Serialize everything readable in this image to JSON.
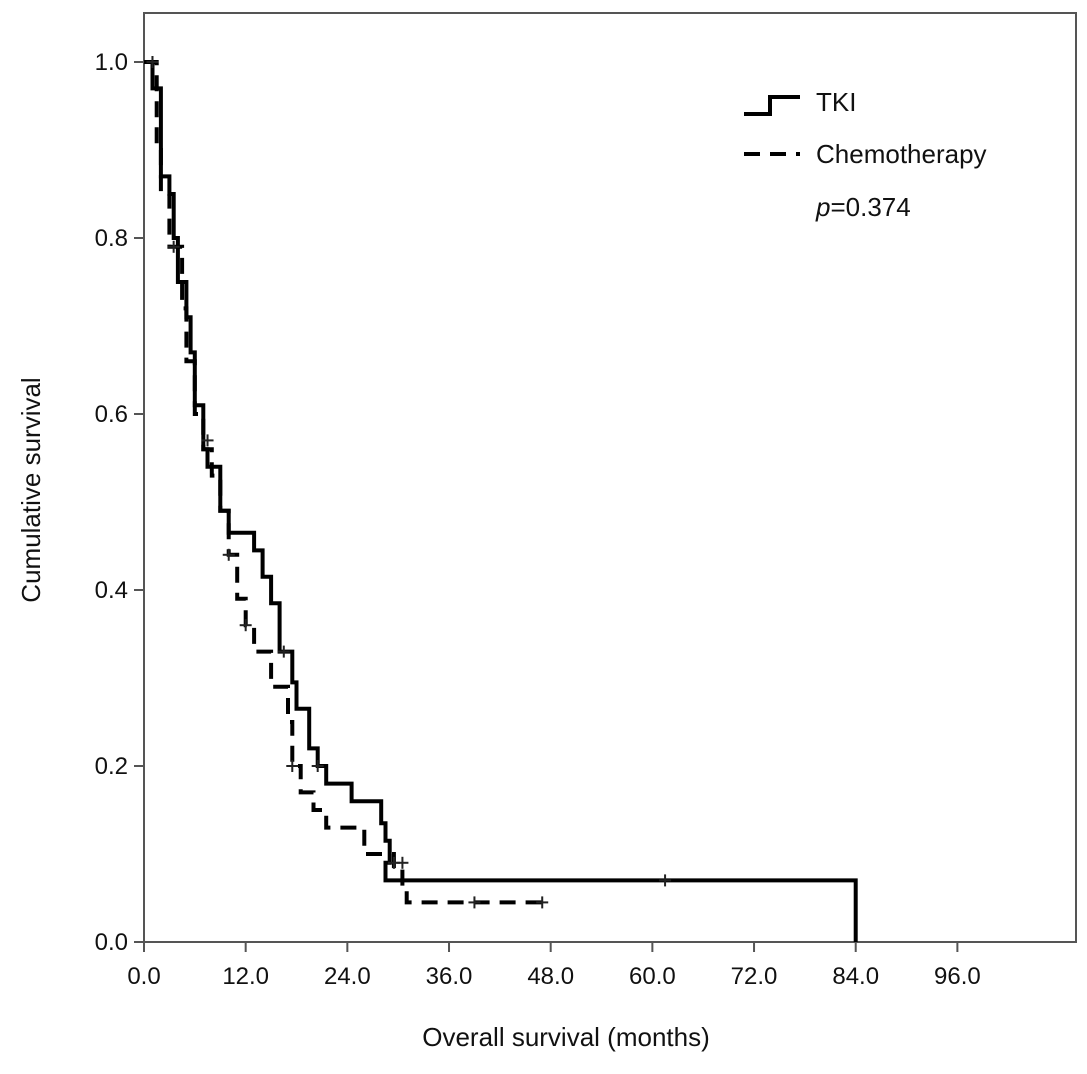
{
  "chart_data": {
    "type": "line",
    "subtype": "kaplan-meier step curve",
    "xlabel": "Overall survival (months)",
    "ylabel": "Cumulative survival",
    "xlim": [
      0,
      110
    ],
    "ylim": [
      0,
      1.0
    ],
    "x_ticks": [
      "0.0",
      "12.0",
      "24.0",
      "36.0",
      "48.0",
      "60.0",
      "72.0",
      "84.0",
      "96.0"
    ],
    "y_ticks": [
      "0.0",
      "0.2",
      "0.4",
      "0.6",
      "0.8",
      "1.0"
    ],
    "grid": false,
    "legend_position": "top-right",
    "annotation": {
      "italic": "p",
      "rest": "=0.374"
    },
    "series": [
      {
        "name": "TKI",
        "style": "solid",
        "color": "#000000",
        "steps": [
          [
            0,
            1.0
          ],
          [
            1,
            0.97
          ],
          [
            2,
            0.87
          ],
          [
            3,
            0.85
          ],
          [
            3.5,
            0.8
          ],
          [
            4,
            0.75
          ],
          [
            5,
            0.71
          ],
          [
            5.5,
            0.67
          ],
          [
            6,
            0.61
          ],
          [
            7,
            0.56
          ],
          [
            7.5,
            0.54
          ],
          [
            9,
            0.49
          ],
          [
            10,
            0.465
          ],
          [
            13,
            0.445
          ],
          [
            14,
            0.415
          ],
          [
            15,
            0.385
          ],
          [
            16,
            0.33
          ],
          [
            17.5,
            0.295
          ],
          [
            18,
            0.265
          ],
          [
            19.5,
            0.22
          ],
          [
            20.5,
            0.2
          ],
          [
            21.5,
            0.18
          ],
          [
            24.5,
            0.16
          ],
          [
            28,
            0.135
          ],
          [
            28.5,
            0.115
          ],
          [
            29,
            0.09
          ],
          [
            28.5,
            0.07
          ],
          [
            84,
            0.0
          ]
        ],
        "censored": [
          [
            1,
            1.0
          ],
          [
            16.5,
            0.33
          ],
          [
            20.5,
            0.2
          ],
          [
            29.5,
            0.09
          ],
          [
            61.5,
            0.07
          ]
        ]
      },
      {
        "name": "Chemotherapy",
        "style": "dashed",
        "color": "#000000",
        "steps": [
          [
            0,
            1.0
          ],
          [
            1.5,
            0.9
          ],
          [
            2,
            0.85
          ],
          [
            3,
            0.79
          ],
          [
            4.5,
            0.72
          ],
          [
            5,
            0.66
          ],
          [
            6,
            0.6
          ],
          [
            7,
            0.56
          ],
          [
            8,
            0.53
          ],
          [
            9,
            0.49
          ],
          [
            10,
            0.44
          ],
          [
            11,
            0.39
          ],
          [
            12,
            0.36
          ],
          [
            13,
            0.33
          ],
          [
            15,
            0.29
          ],
          [
            17,
            0.25
          ],
          [
            17.5,
            0.2
          ],
          [
            18.5,
            0.17
          ],
          [
            20,
            0.15
          ],
          [
            21.5,
            0.13
          ],
          [
            26,
            0.1
          ],
          [
            29.5,
            0.08
          ],
          [
            30.5,
            0.06
          ],
          [
            31,
            0.045
          ],
          [
            47,
            0.045
          ]
        ],
        "censored": [
          [
            1,
            1.0
          ],
          [
            3.5,
            0.79
          ],
          [
            7.5,
            0.57
          ],
          [
            10,
            0.44
          ],
          [
            12,
            0.36
          ],
          [
            17.5,
            0.2
          ],
          [
            30.5,
            0.09
          ],
          [
            39,
            0.045
          ],
          [
            47,
            0.045
          ]
        ]
      }
    ]
  }
}
